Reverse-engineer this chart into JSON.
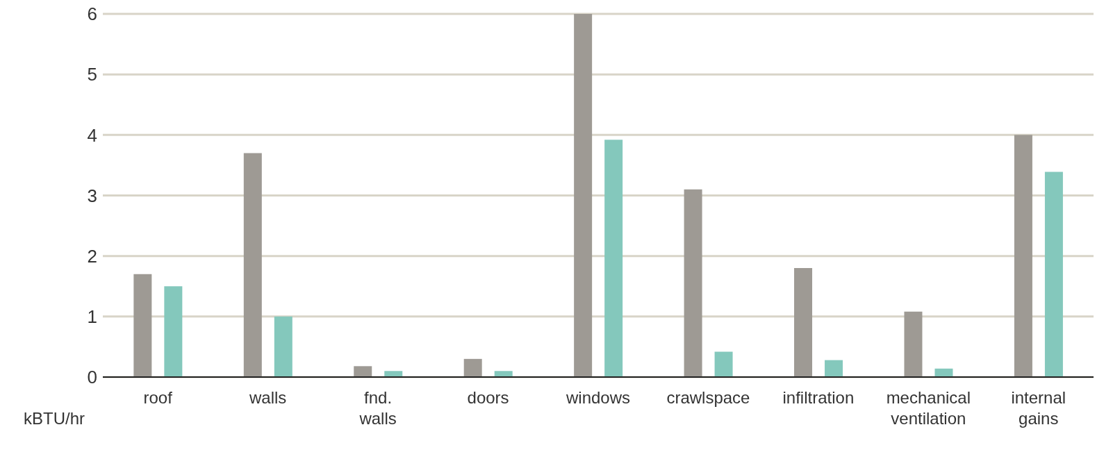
{
  "chart_data": {
    "type": "bar",
    "ylabel": "kBTU/hr",
    "categories": [
      "roof",
      "walls",
      "fnd. walls",
      "doors",
      "windows",
      "crawlspace",
      "infiltration",
      "mechanical ventilation",
      "internal gains"
    ],
    "series": [
      {
        "color": "#9e9a94",
        "values": [
          1.7,
          3.7,
          0.18,
          0.3,
          6.0,
          3.1,
          1.8,
          1.08,
          4.0
        ]
      },
      {
        "color": "#84c8bc",
        "values": [
          1.5,
          1.0,
          0.1,
          0.1,
          3.92,
          0.42,
          0.28,
          0.14,
          3.39
        ]
      }
    ],
    "ylim": [
      0,
      6
    ],
    "yticks": [
      0,
      1,
      2,
      3,
      4,
      5,
      6
    ],
    "grid": "y",
    "legend": false
  }
}
